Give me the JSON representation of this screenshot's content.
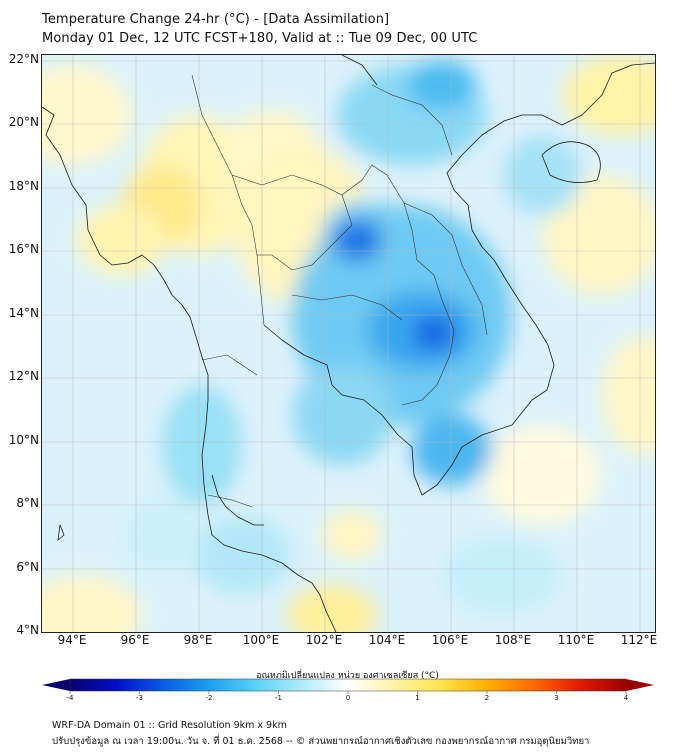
{
  "title": {
    "line1": "Temperature Change 24-hr (°C) - [Data Assimilation]",
    "line2": "Monday 01 Dec, 12 UTC FCST+180, Valid at :: Tue 09 Dec, 00 UTC"
  },
  "map": {
    "lat_labels": [
      "22°N",
      "20°N",
      "18°N",
      "16°N",
      "14°N",
      "12°N",
      "10°N",
      "8°N",
      "6°N",
      "4°N"
    ],
    "lon_labels": [
      "94°E",
      "96°E",
      "98°E",
      "100°E",
      "102°E",
      "104°E",
      "106°E",
      "108°E",
      "110°E",
      "112°E"
    ],
    "lat_range": [
      4,
      22.2
    ],
    "lon_range": [
      93,
      112.5
    ]
  },
  "colorbar": {
    "label": "อุณหภูมิเปลี่ยนแปลง หน่วย องศาเซลเซียส (°C)",
    "ticks": [
      "-4",
      "-3",
      "-2",
      "-1",
      "0",
      "1",
      "2",
      "3",
      "4"
    ],
    "range": [
      -4,
      4
    ],
    "colors": [
      "#0a0070",
      "#0010c8",
      "#0a5ae6",
      "#1aa0f0",
      "#58d2f8",
      "#b0ecfb",
      "#ffffff",
      "#fff4a8",
      "#ffe34a",
      "#ffb000",
      "#ff6a00",
      "#e41a00",
      "#9a0000"
    ]
  },
  "footer": {
    "line1": "WRF-DA Domain 01 :: Grid Resolution 9km x 9km",
    "line2": "ปรับปรุงข้อมูล ณ เวลา 19:00น. วัน จ. ที่ 01 ธ.ค. 2568 -- © ส่วนพยากรณ์อากาศเชิงตัวเลข กองพยากรณ์อากาศ กรมอุตุนิยมวิทยา"
  }
}
